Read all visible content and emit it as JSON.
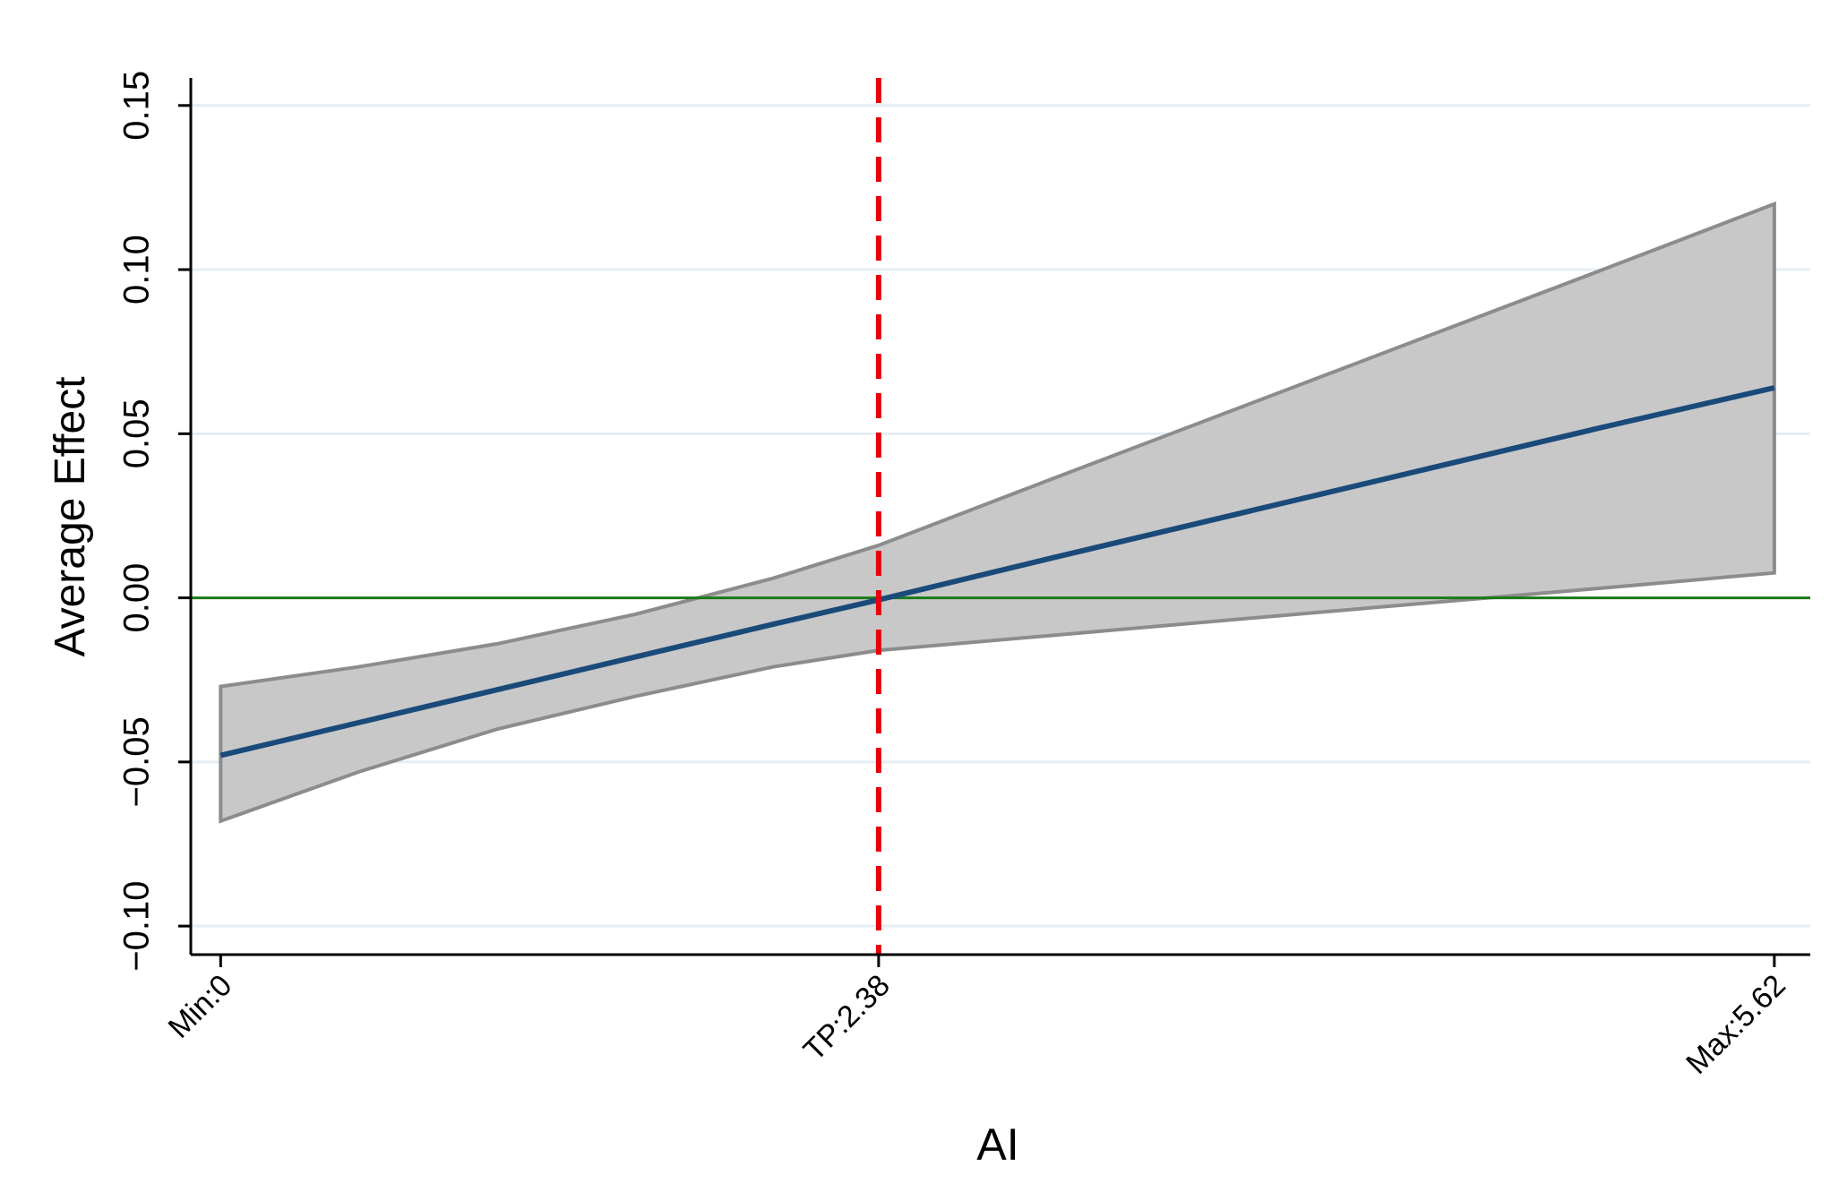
{
  "chart_data": {
    "type": "line",
    "y_label": "Average Effect",
    "x_label": "AI",
    "x": [
      0,
      0.5,
      1,
      1.5,
      2,
      2.38,
      3,
      4,
      5,
      5.62
    ],
    "series": [
      {
        "color": "#1a4a7a",
        "values": [
          -0.048,
          -0.038,
          -0.028,
          -0.018,
          -0.008,
          -0.0006,
          0.012,
          0.032,
          0.052,
          0.064
        ]
      }
    ],
    "band": {
      "color": "#c8c8c8",
      "edge_color": "#8c8c8c",
      "upper": [
        -0.027,
        -0.021,
        -0.014,
        -0.005,
        0.006,
        0.016,
        0.036,
        0.068,
        0.1,
        0.12
      ],
      "lower": [
        -0.068,
        -0.053,
        -0.04,
        -0.03,
        -0.021,
        -0.016,
        -0.0115,
        -0.0042,
        0.003,
        0.0076
      ]
    },
    "reference_lines": {
      "x": 2.38,
      "x_color": "#e8000b",
      "y": 0,
      "y_color": "#1a7a1a"
    },
    "xlim": [
      -0.108,
      5.75
    ],
    "ylim": [
      -0.1087,
      0.1584
    ],
    "xticks": [
      {
        "value": 0,
        "label": "Min:0"
      },
      {
        "value": 2.38,
        "label": "TP:2.38"
      },
      {
        "value": 5.62,
        "label": "Max:5.62"
      }
    ],
    "yticks": [
      {
        "value": -0.1,
        "label": "−0.10"
      },
      {
        "value": -0.05,
        "label": "−0.05"
      },
      {
        "value": 0,
        "label": "0.00"
      },
      0.05,
      {
        "value": 0.1,
        "label": "0.10"
      },
      0.15
    ],
    "grid": true
  }
}
